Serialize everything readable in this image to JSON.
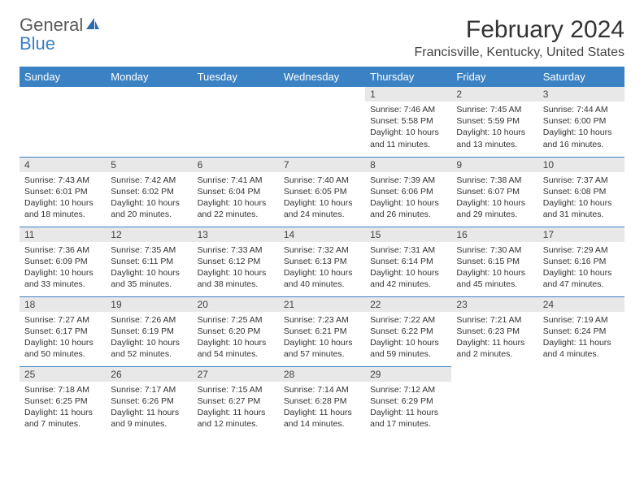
{
  "logo": {
    "text1": "General",
    "text2": "Blue"
  },
  "title": "February 2024",
  "location": "Francisville, Kentucky, United States",
  "colors": {
    "header_bg": "#3b82c4",
    "header_text": "#ffffff",
    "daynum_bg": "#e8e8e8",
    "row_border": "#3b82c4",
    "logo_gray": "#5a5a5a",
    "logo_blue": "#3b7fc4"
  },
  "weekdays": [
    "Sunday",
    "Monday",
    "Tuesday",
    "Wednesday",
    "Thursday",
    "Friday",
    "Saturday"
  ],
  "weeks": [
    [
      null,
      null,
      null,
      null,
      {
        "n": "1",
        "sr": "7:46 AM",
        "ss": "5:58 PM",
        "dl": "10 hours and 11 minutes."
      },
      {
        "n": "2",
        "sr": "7:45 AM",
        "ss": "5:59 PM",
        "dl": "10 hours and 13 minutes."
      },
      {
        "n": "3",
        "sr": "7:44 AM",
        "ss": "6:00 PM",
        "dl": "10 hours and 16 minutes."
      }
    ],
    [
      {
        "n": "4",
        "sr": "7:43 AM",
        "ss": "6:01 PM",
        "dl": "10 hours and 18 minutes."
      },
      {
        "n": "5",
        "sr": "7:42 AM",
        "ss": "6:02 PM",
        "dl": "10 hours and 20 minutes."
      },
      {
        "n": "6",
        "sr": "7:41 AM",
        "ss": "6:04 PM",
        "dl": "10 hours and 22 minutes."
      },
      {
        "n": "7",
        "sr": "7:40 AM",
        "ss": "6:05 PM",
        "dl": "10 hours and 24 minutes."
      },
      {
        "n": "8",
        "sr": "7:39 AM",
        "ss": "6:06 PM",
        "dl": "10 hours and 26 minutes."
      },
      {
        "n": "9",
        "sr": "7:38 AM",
        "ss": "6:07 PM",
        "dl": "10 hours and 29 minutes."
      },
      {
        "n": "10",
        "sr": "7:37 AM",
        "ss": "6:08 PM",
        "dl": "10 hours and 31 minutes."
      }
    ],
    [
      {
        "n": "11",
        "sr": "7:36 AM",
        "ss": "6:09 PM",
        "dl": "10 hours and 33 minutes."
      },
      {
        "n": "12",
        "sr": "7:35 AM",
        "ss": "6:11 PM",
        "dl": "10 hours and 35 minutes."
      },
      {
        "n": "13",
        "sr": "7:33 AM",
        "ss": "6:12 PM",
        "dl": "10 hours and 38 minutes."
      },
      {
        "n": "14",
        "sr": "7:32 AM",
        "ss": "6:13 PM",
        "dl": "10 hours and 40 minutes."
      },
      {
        "n": "15",
        "sr": "7:31 AM",
        "ss": "6:14 PM",
        "dl": "10 hours and 42 minutes."
      },
      {
        "n": "16",
        "sr": "7:30 AM",
        "ss": "6:15 PM",
        "dl": "10 hours and 45 minutes."
      },
      {
        "n": "17",
        "sr": "7:29 AM",
        "ss": "6:16 PM",
        "dl": "10 hours and 47 minutes."
      }
    ],
    [
      {
        "n": "18",
        "sr": "7:27 AM",
        "ss": "6:17 PM",
        "dl": "10 hours and 50 minutes."
      },
      {
        "n": "19",
        "sr": "7:26 AM",
        "ss": "6:19 PM",
        "dl": "10 hours and 52 minutes."
      },
      {
        "n": "20",
        "sr": "7:25 AM",
        "ss": "6:20 PM",
        "dl": "10 hours and 54 minutes."
      },
      {
        "n": "21",
        "sr": "7:23 AM",
        "ss": "6:21 PM",
        "dl": "10 hours and 57 minutes."
      },
      {
        "n": "22",
        "sr": "7:22 AM",
        "ss": "6:22 PM",
        "dl": "10 hours and 59 minutes."
      },
      {
        "n": "23",
        "sr": "7:21 AM",
        "ss": "6:23 PM",
        "dl": "11 hours and 2 minutes."
      },
      {
        "n": "24",
        "sr": "7:19 AM",
        "ss": "6:24 PM",
        "dl": "11 hours and 4 minutes."
      }
    ],
    [
      {
        "n": "25",
        "sr": "7:18 AM",
        "ss": "6:25 PM",
        "dl": "11 hours and 7 minutes."
      },
      {
        "n": "26",
        "sr": "7:17 AM",
        "ss": "6:26 PM",
        "dl": "11 hours and 9 minutes."
      },
      {
        "n": "27",
        "sr": "7:15 AM",
        "ss": "6:27 PM",
        "dl": "11 hours and 12 minutes."
      },
      {
        "n": "28",
        "sr": "7:14 AM",
        "ss": "6:28 PM",
        "dl": "11 hours and 14 minutes."
      },
      {
        "n": "29",
        "sr": "7:12 AM",
        "ss": "6:29 PM",
        "dl": "11 hours and 17 minutes."
      },
      null,
      null
    ]
  ],
  "labels": {
    "sunrise": "Sunrise: ",
    "sunset": "Sunset: ",
    "daylight": "Daylight: "
  }
}
